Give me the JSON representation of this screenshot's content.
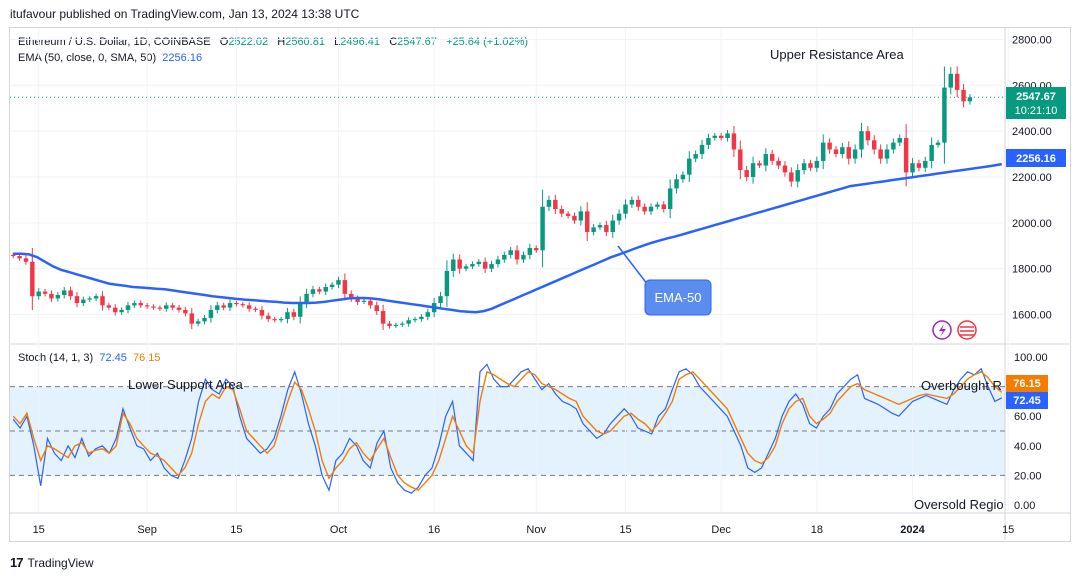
{
  "header": {
    "published": "itufavour published on TradingView.com, Jan 13, 2024 13:38 UTC"
  },
  "legend": {
    "symbol": "Ethereum / U.S. Dollar, 1D, COINBASE",
    "open_label": "O",
    "open": "2522.02",
    "high_label": "H",
    "high": "2560.81",
    "low_label": "L",
    "low": "2496.41",
    "close_label": "C",
    "close": "2547.67",
    "change": "+25.64 (+1.02%)",
    "ema_label": "EMA (50, close, 0, SMA, 50)",
    "ema_value": "2256.16",
    "stoch_label": "Stoch (14, 1, 3)",
    "stoch_k": "72.45",
    "stoch_d": "76.15"
  },
  "annotations": {
    "upper": "Upper Resistance Area",
    "lower": "Lower Support Area",
    "overbought": "Overbought R",
    "oversold": "Oversold Regio",
    "ema_callout": "EMA-50"
  },
  "badges": {
    "price": "2547.67",
    "countdown": "10:21:10",
    "ema": "2256.16",
    "stoch_d": "76.15",
    "stoch_k": "72.45"
  },
  "footer": {
    "brand": "TradingView",
    "logo": "17"
  },
  "colors": {
    "up": "#089981",
    "down": "#f23645",
    "ema": "#2962ff",
    "stoch_k": "#2962ff",
    "stoch_d": "#f57c00",
    "band": "#e3f2fd"
  },
  "chart_data": [
    {
      "type": "candlestick",
      "title": "Ethereum / U.S. Dollar, 1D, COINBASE",
      "ylim": [
        1480,
        2850
      ],
      "y_ticks": [
        "2800.00",
        "2600.00",
        "2400.00",
        "2200.00",
        "2000.00",
        "1800.00",
        "1600.00"
      ],
      "y_tick_values": [
        2800,
        2600,
        2400,
        2200,
        2000,
        1800,
        1600
      ],
      "x_ticks": [
        "15",
        "Sep",
        "15",
        "Oct",
        "16",
        "Nov",
        "15",
        "Dec",
        "18",
        "2024",
        "15"
      ],
      "x_tick_index": [
        4,
        21,
        35,
        51,
        66,
        82,
        96,
        111,
        126,
        141,
        156
      ],
      "close_path": [
        1855,
        1845,
        1830,
        1680,
        1700,
        1690,
        1670,
        1685,
        1705,
        1680,
        1650,
        1665,
        1670,
        1680,
        1640,
        1630,
        1610,
        1620,
        1640,
        1650,
        1640,
        1635,
        1630,
        1625,
        1640,
        1630,
        1620,
        1605,
        1560,
        1570,
        1585,
        1620,
        1640,
        1630,
        1650,
        1645,
        1640,
        1625,
        1620,
        1595,
        1580,
        1575,
        1580,
        1610,
        1590,
        1650,
        1690,
        1710,
        1700,
        1720,
        1730,
        1750,
        1690,
        1670,
        1655,
        1660,
        1640,
        1615,
        1560,
        1550,
        1555,
        1560,
        1575,
        1580,
        1590,
        1610,
        1650,
        1680,
        1790,
        1840,
        1800,
        1810,
        1820,
        1830,
        1800,
        1820,
        1840,
        1860,
        1880,
        1840,
        1860,
        1890,
        1880,
        2070,
        2100,
        2060,
        2040,
        2030,
        2010,
        2050,
        1960,
        1980,
        1990,
        1960,
        2010,
        2040,
        2080,
        2100,
        2070,
        2050,
        2070,
        2080,
        2060,
        2150,
        2190,
        2210,
        2280,
        2300,
        2340,
        2370,
        2380,
        2370,
        2390,
        2320,
        2230,
        2200,
        2260,
        2250,
        2300,
        2270,
        2250,
        2220,
        2180,
        2230,
        2260,
        2240,
        2270,
        2350,
        2320,
        2300,
        2330,
        2280,
        2320,
        2400,
        2360,
        2320,
        2280,
        2320,
        2350,
        2370,
        2220,
        2260,
        2240,
        2270,
        2340,
        2350,
        2590,
        2650,
        2580,
        2530,
        2547.67
      ],
      "ema50_approx": [
        1865,
        1865,
        1862,
        1850,
        1830,
        1810,
        1795,
        1785,
        1775,
        1765,
        1755,
        1745,
        1735,
        1730,
        1725,
        1720,
        1718,
        1715,
        1712,
        1710,
        1705,
        1700,
        1695,
        1690,
        1685,
        1680,
        1676,
        1672,
        1668,
        1665,
        1663,
        1660,
        1657,
        1655,
        1652,
        1650,
        1650,
        1650,
        1652,
        1655,
        1660,
        1665,
        1670,
        1672,
        1672,
        1670,
        1666,
        1660,
        1655,
        1650,
        1645,
        1640,
        1635,
        1630,
        1625,
        1620,
        1615,
        1612,
        1610,
        1615,
        1625,
        1640,
        1655,
        1670,
        1685,
        1700,
        1715,
        1730,
        1745,
        1760,
        1775,
        1790,
        1805,
        1820,
        1835,
        1850,
        1862,
        1875,
        1888,
        1900,
        1912,
        1922,
        1932,
        1940,
        1950,
        1960,
        1970,
        1980,
        1990,
        2000,
        2010,
        2020,
        2030,
        2040,
        2050,
        2060,
        2070,
        2080,
        2090,
        2100,
        2110,
        2120,
        2130,
        2140,
        2150,
        2160,
        2165,
        2170,
        2175,
        2180,
        2185,
        2190,
        2195,
        2200,
        2205,
        2210,
        2215,
        2220,
        2225,
        2230,
        2235,
        2240,
        2245,
        2250,
        2256.16
      ]
    },
    {
      "type": "line",
      "title": "Stoch (14, 1, 3)",
      "ylim": [
        0,
        100
      ],
      "y_ticks": [
        "100.00",
        "80.00",
        "60.00",
        "40.00",
        "20.00",
        "0.00"
      ],
      "y_tick_values": [
        100,
        80,
        60,
        40,
        20,
        0
      ],
      "levels": [
        80,
        50,
        20
      ],
      "series": [
        {
          "name": "",
          "values": [
            60,
            55,
            62,
            45,
            30,
            40,
            38,
            35,
            32,
            40,
            42,
            35,
            37,
            38,
            35,
            40,
            62,
            55,
            45,
            40,
            35,
            33,
            30,
            25,
            20,
            25,
            35,
            55,
            70,
            75,
            72,
            80,
            78,
            65,
            50,
            45,
            40,
            35,
            40,
            55,
            70,
            83,
            78,
            65,
            50,
            30,
            18,
            25,
            30,
            38,
            42,
            35,
            30,
            38,
            45,
            32,
            20,
            15,
            12,
            10,
            15,
            20,
            30,
            45,
            60,
            50,
            40,
            35,
            70,
            90,
            88,
            85,
            82,
            80,
            85,
            90,
            88,
            82,
            80,
            78,
            75,
            72,
            70,
            60,
            55,
            50,
            48,
            50,
            55,
            60,
            62,
            58,
            55,
            50,
            55,
            62,
            70,
            85,
            88,
            90,
            85,
            80,
            75,
            70,
            65,
            55,
            45,
            35,
            30,
            28,
            32,
            40,
            55,
            65,
            70,
            72,
            60,
            55,
            58,
            62,
            70,
            75,
            80,
            82,
            78,
            76,
            74,
            72,
            70,
            68,
            70,
            72,
            74,
            75,
            74,
            73,
            72,
            75,
            80,
            85,
            88,
            90,
            86,
            80,
            76.15
          ]
        },
        {
          "name": "",
          "values": [
            58,
            52,
            60,
            40,
            13,
            45,
            35,
            30,
            40,
            32,
            45,
            33,
            38,
            40,
            35,
            45,
            65,
            52,
            40,
            38,
            30,
            35,
            25,
            20,
            18,
            30,
            45,
            70,
            85,
            78,
            75,
            85,
            80,
            60,
            45,
            40,
            35,
            38,
            45,
            60,
            78,
            90,
            75,
            55,
            40,
            20,
            10,
            30,
            35,
            45,
            40,
            30,
            25,
            42,
            50,
            25,
            15,
            10,
            8,
            12,
            20,
            25,
            40,
            60,
            70,
            40,
            35,
            30,
            90,
            95,
            85,
            80,
            80,
            85,
            90,
            92,
            85,
            78,
            82,
            75,
            70,
            68,
            65,
            55,
            50,
            45,
            48,
            55,
            60,
            65,
            60,
            52,
            50,
            48,
            60,
            65,
            78,
            90,
            92,
            88,
            80,
            75,
            70,
            65,
            60,
            50,
            40,
            25,
            22,
            25,
            35,
            45,
            60,
            70,
            75,
            68,
            55,
            52,
            60,
            65,
            75,
            80,
            85,
            88,
            72,
            70,
            68,
            65,
            62,
            60,
            65,
            70,
            72,
            74,
            72,
            70,
            68,
            78,
            85,
            90,
            88,
            92,
            80,
            70,
            72.45
          ]
        }
      ]
    }
  ]
}
